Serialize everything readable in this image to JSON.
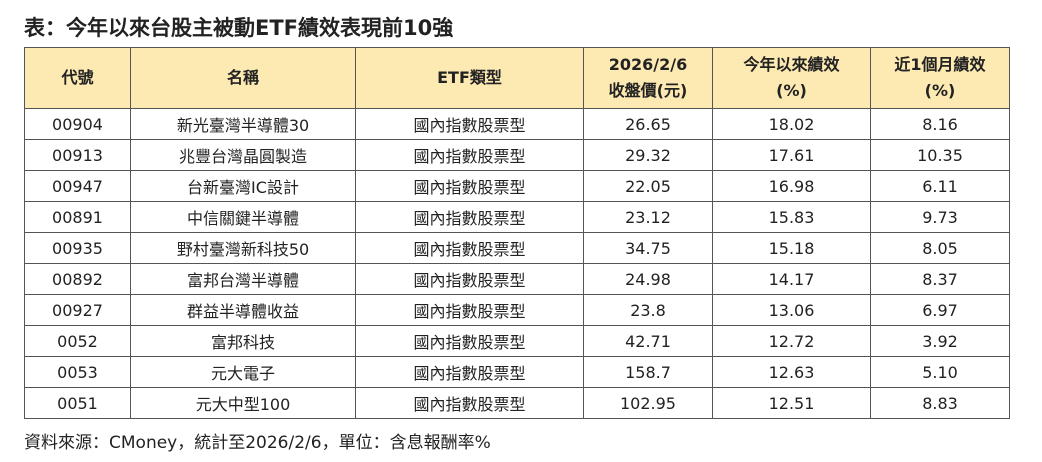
{
  "title": "表：今年以來台股主被動ETF績效表現前10強",
  "table": {
    "headers": [
      [
        "代號"
      ],
      [
        "名稱"
      ],
      [
        "ETF類型"
      ],
      [
        "2026/2/6",
        "收盤價(元)"
      ],
      [
        "今年以來績效",
        "(%)"
      ],
      [
        "近1個月績效",
        "(%)"
      ]
    ],
    "rows": [
      [
        "00904",
        "新光臺灣半導體30",
        "國內指數股票型",
        "26.65",
        "18.02",
        "8.16"
      ],
      [
        "00913",
        "兆豐台灣晶圓製造",
        "國內指數股票型",
        "29.32",
        "17.61",
        "10.35"
      ],
      [
        "00947",
        "台新臺灣IC設計",
        "國內指數股票型",
        "22.05",
        "16.98",
        "6.11"
      ],
      [
        "00891",
        "中信關鍵半導體",
        "國內指數股票型",
        "23.12",
        "15.83",
        "9.73"
      ],
      [
        "00935",
        "野村臺灣新科技50",
        "國內指數股票型",
        "34.75",
        "15.18",
        "8.05"
      ],
      [
        "00892",
        "富邦台灣半導體",
        "國內指數股票型",
        "24.98",
        "14.17",
        "8.37"
      ],
      [
        "00927",
        "群益半導體收益",
        "國內指數股票型",
        "23.8",
        "13.06",
        "6.97"
      ],
      [
        "0052",
        "富邦科技",
        "國內指數股票型",
        "42.71",
        "12.72",
        "3.92"
      ],
      [
        "0053",
        "元大電子",
        "國內指數股票型",
        "158.7",
        "12.63",
        "5.10"
      ],
      [
        "0051",
        "元大中型100",
        "國內指數股票型",
        "102.95",
        "12.51",
        "8.83"
      ]
    ]
  },
  "footnote": "資料來源：CMoney，統計至2026/2/6，單位：含息報酬率%"
}
